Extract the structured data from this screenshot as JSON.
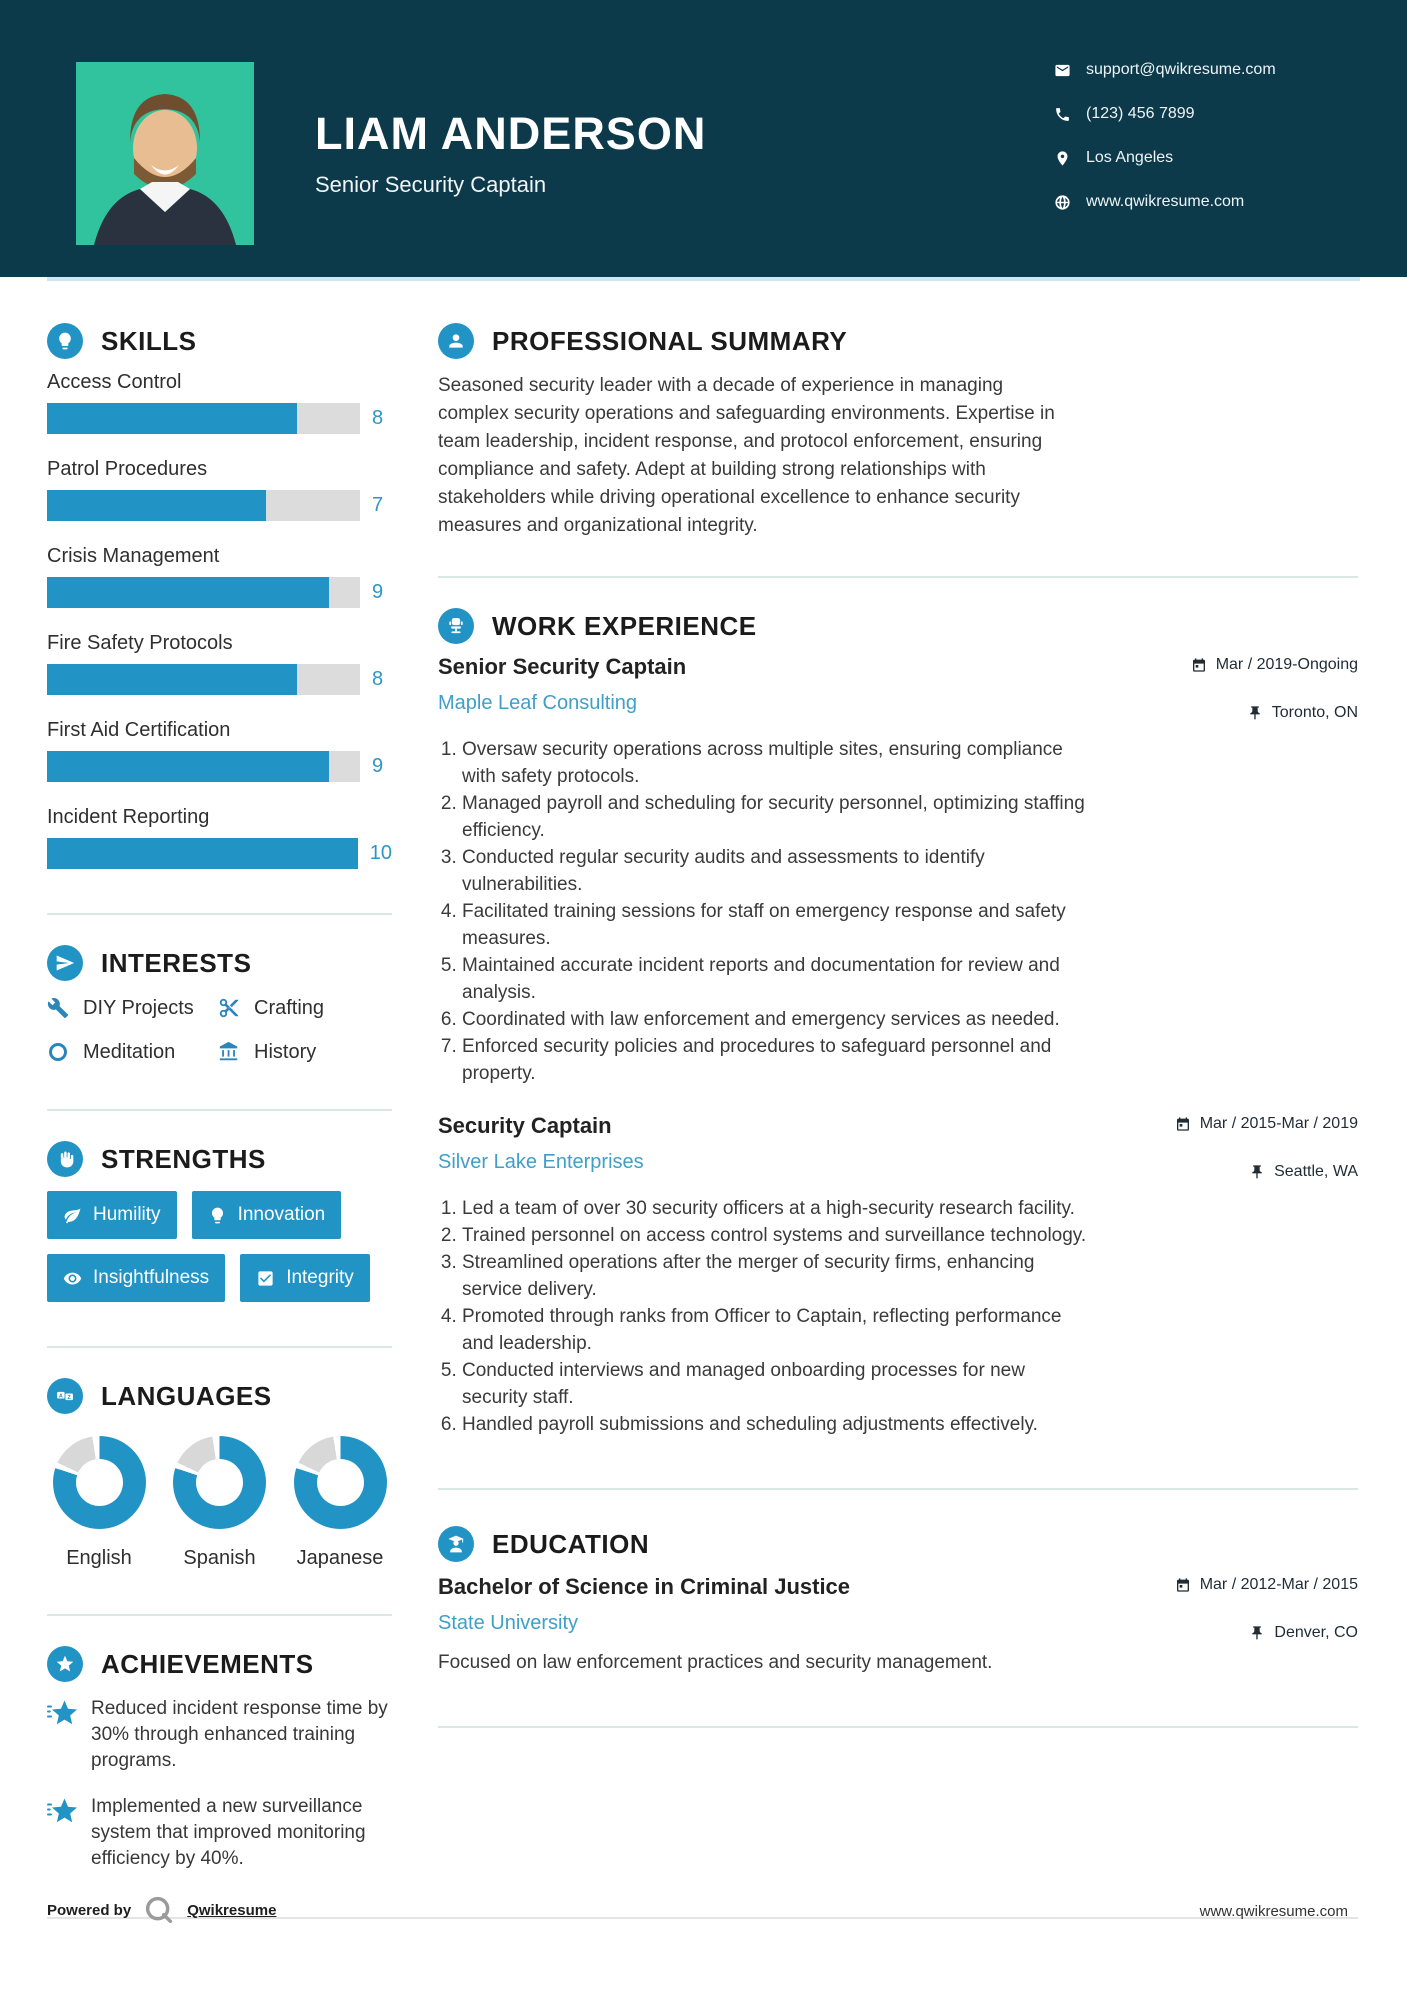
{
  "colors": {
    "accent": "#2293c5",
    "navy": "#0d3a4a",
    "link_blue": "#3f9fc8",
    "bar_track": "#dcdcdc",
    "photo_background": "#30c39e",
    "divider": "#d9e7e5",
    "header_underline": "#cfe7f2"
  },
  "header": {
    "name": "LIAM ANDERSON",
    "title": "Senior Security Captain",
    "contact": [
      {
        "icon": "envelope-icon",
        "text": "support@qwikresume.com"
      },
      {
        "icon": "phone-icon",
        "text": "(123) 456 7899"
      },
      {
        "icon": "location-pin-icon",
        "text": "Los Angeles"
      },
      {
        "icon": "globe-icon",
        "text": "www.qwikresume.com"
      }
    ]
  },
  "sidebar": {
    "skills": {
      "heading": "SKILLS",
      "max": 10,
      "items": [
        {
          "label": "Access Control",
          "value": 8
        },
        {
          "label": "Patrol Procedures",
          "value": 7
        },
        {
          "label": "Crisis Management",
          "value": 9
        },
        {
          "label": "Fire Safety Protocols",
          "value": 8
        },
        {
          "label": "First Aid Certification",
          "value": 9
        },
        {
          "label": "Incident Reporting",
          "value": 10
        }
      ]
    },
    "interests": {
      "heading": "INTERESTS",
      "items": [
        {
          "icon": "wrench-icon",
          "label": "DIY Projects"
        },
        {
          "icon": "scissors-icon",
          "label": "Crafting"
        },
        {
          "icon": "ring-icon",
          "label": "Meditation"
        },
        {
          "icon": "museum-icon",
          "label": "History"
        }
      ]
    },
    "strengths": {
      "heading": "STRENGTHS",
      "items": [
        {
          "icon": "leaf-icon",
          "label": "Humility"
        },
        {
          "icon": "lightbulb-icon",
          "label": "Innovation"
        },
        {
          "icon": "eye-icon",
          "label": "Insightfulness"
        },
        {
          "icon": "checkbox-icon",
          "label": "Integrity"
        }
      ]
    },
    "languages": {
      "heading": "LANGUAGES",
      "items": [
        {
          "label": "English",
          "percent": 80
        },
        {
          "label": "Spanish",
          "percent": 80
        },
        {
          "label": "Japanese",
          "percent": 80
        }
      ]
    },
    "achievements": {
      "heading": "ACHIEVEMENTS",
      "items": [
        {
          "text": "Reduced incident response time by 30% through enhanced training programs."
        },
        {
          "text": "Implemented a new surveillance system that improved monitoring efficiency by 40%."
        }
      ]
    }
  },
  "main": {
    "summary": {
      "heading": "PROFESSIONAL SUMMARY",
      "text": "Seasoned security leader with a decade of experience in managing complex security operations and safeguarding environments. Expertise in team leadership, incident response, and protocol enforcement, ensuring compliance and safety. Adept at building strong relationships with stakeholders while driving operational excellence to enhance security measures and organizational integrity."
    },
    "experience": {
      "heading": "WORK EXPERIENCE",
      "jobs": [
        {
          "title": "Senior Security Captain",
          "company": "Maple Leaf Consulting",
          "dates": "Mar / 2019-Ongoing",
          "location": "Toronto, ON",
          "bullets": [
            "Oversaw security operations across multiple sites, ensuring compliance with safety protocols.",
            "Managed payroll and scheduling for security personnel, optimizing staffing efficiency.",
            "Conducted regular security audits and assessments to identify vulnerabilities.",
            "Facilitated training sessions for staff on emergency response and safety measures.",
            "Maintained accurate incident reports and documentation for review and analysis.",
            "Coordinated with law enforcement and emergency services as needed.",
            "Enforced security policies and procedures to safeguard personnel and property."
          ]
        },
        {
          "title": "Security Captain",
          "company": "Silver Lake Enterprises",
          "dates": "Mar / 2015-Mar / 2019",
          "location": "Seattle, WA",
          "bullets": [
            "Led a team of over 30 security officers at a high-security research facility.",
            "Trained personnel on access control systems and surveillance technology.",
            "Streamlined operations after the merger of security firms, enhancing service delivery.",
            "Promoted through ranks from Officer to Captain, reflecting performance and leadership.",
            "Conducted interviews and managed onboarding processes for new security staff.",
            "Handled payroll submissions and scheduling adjustments effectively."
          ]
        }
      ]
    },
    "education": {
      "heading": "EDUCATION",
      "degree": "Bachelor of Science in Criminal Justice",
      "school": "State University",
      "dates": "Mar / 2012-Mar / 2015",
      "location": "Denver, CO",
      "note": "Focused on law enforcement practices and security management."
    }
  },
  "footer": {
    "powered_by": "Powered by",
    "brand": "Qwikresume",
    "website": "www.qwikresume.com"
  }
}
